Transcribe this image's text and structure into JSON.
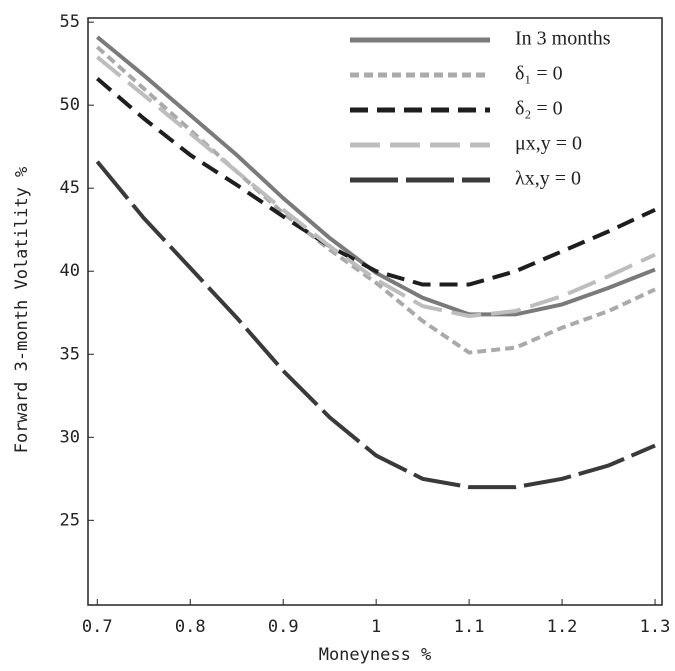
{
  "chart_data": {
    "type": "line",
    "x_label": "Moneyness %",
    "y_label": "Forward 3-month Volatility %",
    "x": [
      0.7,
      0.75,
      0.8,
      0.85,
      0.9,
      0.95,
      1.0,
      1.05,
      1.1,
      1.15,
      1.2,
      1.25,
      1.3
    ],
    "series": [
      {
        "name": "In 3 months",
        "color": "#7a7a7a",
        "dash": "none",
        "values": [
          54.1,
          51.8,
          49.4,
          47.0,
          44.4,
          42.0,
          39.9,
          38.4,
          37.4,
          37.4,
          38.0,
          39.0,
          40.1
        ]
      },
      {
        "name": "δ₁ = 0",
        "color": "#aaaaaa",
        "dash": "9 5",
        "values": [
          53.5,
          51.0,
          48.5,
          46.0,
          43.5,
          41.3,
          39.3,
          37.0,
          35.1,
          35.4,
          36.6,
          37.6,
          38.9
        ]
      },
      {
        "name": "δ₂ = 0",
        "color": "#1e1e1e",
        "dash": "18 9",
        "values": [
          51.6,
          49.2,
          47.0,
          45.2,
          43.3,
          41.5,
          40.0,
          39.2,
          39.2,
          40.0,
          41.2,
          42.4,
          43.7
        ]
      },
      {
        "name": "μx,y = 0",
        "color": "#bdbdbd",
        "dash": "30 10",
        "values": [
          52.9,
          50.6,
          48.3,
          46.0,
          43.7,
          41.5,
          39.5,
          37.9,
          37.3,
          37.6,
          38.5,
          39.7,
          41.0
        ]
      },
      {
        "name": "λx,y = 0",
        "color": "#3a3a3a",
        "dash": "48 8",
        "values": [
          46.6,
          43.2,
          40.2,
          37.2,
          34.0,
          31.2,
          28.9,
          27.5,
          27.0,
          27.0,
          27.5,
          28.3,
          29.5
        ]
      }
    ],
    "xlim": [
      0.69,
      1.3075
    ],
    "xticks": [
      0.7,
      0.8,
      0.9,
      1,
      1.1,
      1.2,
      1.3
    ],
    "ylim": [
      19.9,
      55.25
    ],
    "yticks": [
      25,
      30,
      35,
      40,
      45,
      50,
      55
    ],
    "legend": "top-right"
  }
}
